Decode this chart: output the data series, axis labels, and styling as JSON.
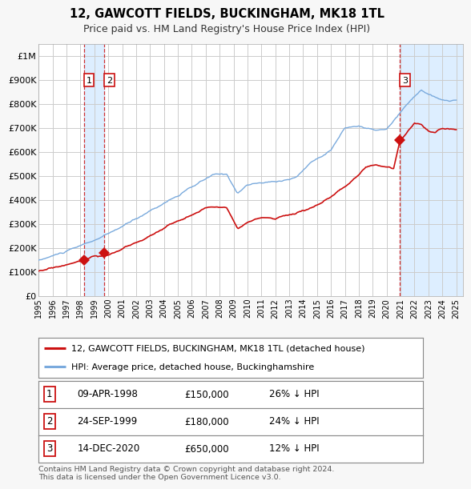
{
  "title": "12, GAWCOTT FIELDS, BUCKINGHAM, MK18 1TL",
  "subtitle": "Price paid vs. HM Land Registry's House Price Index (HPI)",
  "hpi_label": "HPI: Average price, detached house, Buckinghamshire",
  "price_label": "12, GAWCOTT FIELDS, BUCKINGHAM, MK18 1TL (detached house)",
  "hpi_color": "#7aaadd",
  "price_color": "#cc1111",
  "background_color": "#f7f7f7",
  "plot_bg_color": "#ffffff",
  "grid_color": "#cccccc",
  "vband_color": "#ddeeff",
  "transactions": [
    {
      "date_label": "09-APR-1998",
      "date_x": 1998.27,
      "price": 150000,
      "number": 1,
      "hpi_pct": "26% ↓ HPI"
    },
    {
      "date_label": "24-SEP-1999",
      "date_x": 1999.73,
      "price": 180000,
      "number": 2,
      "hpi_pct": "24% ↓ HPI"
    },
    {
      "date_label": "14-DEC-2020",
      "date_x": 2020.95,
      "price": 650000,
      "number": 3,
      "hpi_pct": "12% ↓ HPI"
    }
  ],
  "xlim": [
    1995.0,
    2025.5
  ],
  "ylim": [
    0,
    1050000
  ],
  "yticks": [
    0,
    100000,
    200000,
    300000,
    400000,
    500000,
    600000,
    700000,
    800000,
    900000,
    1000000
  ],
  "ytick_labels": [
    "£0",
    "£100K",
    "£200K",
    "£300K",
    "£400K",
    "£500K",
    "£600K",
    "£700K",
    "£800K",
    "£900K",
    "£1M"
  ],
  "xticks": [
    1995,
    1996,
    1997,
    1998,
    1999,
    2000,
    2001,
    2002,
    2003,
    2004,
    2005,
    2006,
    2007,
    2008,
    2009,
    2010,
    2011,
    2012,
    2013,
    2014,
    2015,
    2016,
    2017,
    2018,
    2019,
    2020,
    2021,
    2022,
    2023,
    2024,
    2025
  ],
  "footer": "Contains HM Land Registry data © Crown copyright and database right 2024.\nThis data is licensed under the Open Government Licence v3.0."
}
